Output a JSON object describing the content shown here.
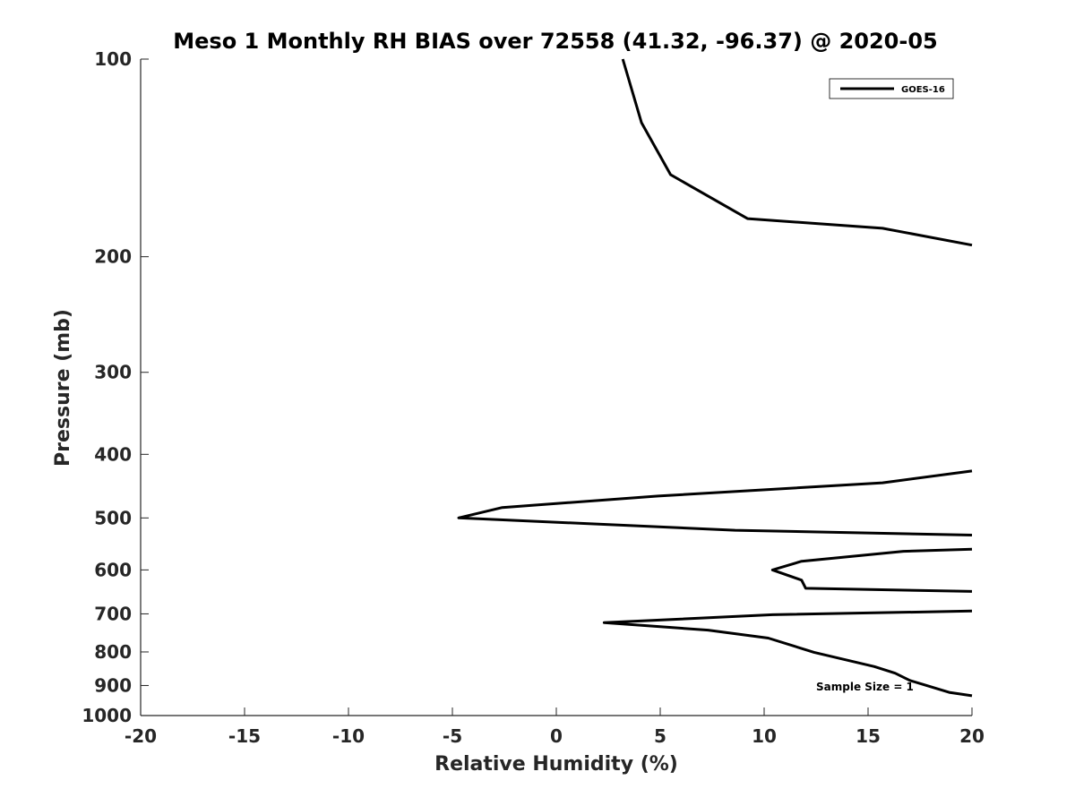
{
  "chart_data": {
    "type": "line",
    "title": "Meso 1 Monthly RH BIAS over 72558 (41.32, -96.37) @ 2020-05",
    "xlabel": "Relative Humidity (%)",
    "ylabel": "Pressure (mb)",
    "xlim": [
      -20,
      20
    ],
    "ylim": [
      100,
      1000
    ],
    "y_scale": "log",
    "y_direction": "reversed",
    "grid": false,
    "legend_position": "top-right",
    "x_ticks": [
      -20,
      -15,
      -10,
      -5,
      0,
      5,
      10,
      15,
      20
    ],
    "x_tick_labels": [
      "-20",
      "-15",
      "-10",
      "-5",
      "0",
      "5",
      "10",
      "15",
      "20"
    ],
    "y_ticks": [
      100,
      200,
      300,
      400,
      500,
      600,
      700,
      800,
      900,
      1000
    ],
    "y_tick_labels": [
      "100",
      "200",
      "300",
      "400",
      "500",
      "600",
      "700",
      "800",
      "900",
      "1000"
    ],
    "annotation": "Sample Size = 1",
    "series": [
      {
        "name": "GOES-16",
        "color": "#000000",
        "segments": [
          [
            {
              "x": 3.2,
              "p": 100
            },
            {
              "x": 4.1,
              "p": 125
            },
            {
              "x": 5.5,
              "p": 150
            },
            {
              "x": 9.2,
              "p": 175
            },
            {
              "x": 15.7,
              "p": 181
            },
            {
              "x": 20.0,
              "p": 192
            }
          ],
          [
            {
              "x": 20.0,
              "p": 424
            },
            {
              "x": 15.7,
              "p": 442
            },
            {
              "x": 4.9,
              "p": 463
            },
            {
              "x": -2.6,
              "p": 482
            },
            {
              "x": -4.7,
              "p": 500
            },
            {
              "x": 8.6,
              "p": 522
            },
            {
              "x": 20.0,
              "p": 531
            }
          ],
          [
            {
              "x": 20.0,
              "p": 558
            },
            {
              "x": 16.7,
              "p": 562
            },
            {
              "x": 11.8,
              "p": 582
            },
            {
              "x": 10.4,
              "p": 600
            },
            {
              "x": 11.8,
              "p": 622
            },
            {
              "x": 12.0,
              "p": 640
            },
            {
              "x": 20.0,
              "p": 647
            }
          ],
          [
            {
              "x": 20.0,
              "p": 693
            },
            {
              "x": 10.4,
              "p": 702
            },
            {
              "x": 2.3,
              "p": 722
            },
            {
              "x": 7.3,
              "p": 741
            },
            {
              "x": 10.2,
              "p": 762
            },
            {
              "x": 12.4,
              "p": 801
            },
            {
              "x": 15.3,
              "p": 842
            },
            {
              "x": 16.3,
              "p": 862
            },
            {
              "x": 17.0,
              "p": 884
            },
            {
              "x": 18.9,
              "p": 922
            },
            {
              "x": 20.0,
              "p": 933
            }
          ]
        ]
      }
    ]
  }
}
